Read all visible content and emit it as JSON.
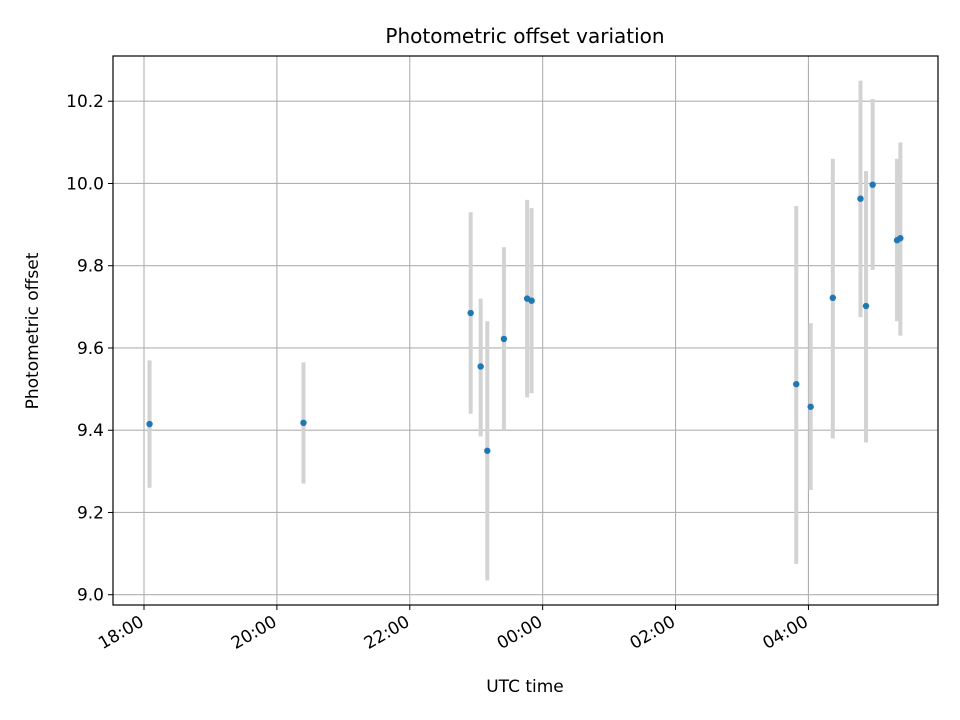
{
  "chart_data": {
    "type": "scatter",
    "title": "Photometric offset variation",
    "xlabel": "UTC time",
    "ylabel": "Photometric offset",
    "x_axis_kind": "time",
    "x_ticks": [
      "18:00",
      "20:00",
      "22:00",
      "00:00",
      "02:00",
      "04:00"
    ],
    "y_ticks": [
      "9.0",
      "9.2",
      "9.4",
      "9.6",
      "9.8",
      "10.0",
      "10.2"
    ],
    "xlim": [
      "17:32",
      "05:57"
    ],
    "ylim": [
      8.975,
      10.31
    ],
    "grid": true,
    "colors": {
      "points": "#1f77b4",
      "errorbars": "#d3d3d3",
      "grid": "#b0b0b0"
    },
    "points": [
      {
        "x": "18:05",
        "y": 9.415,
        "ylow": 9.26,
        "yhigh": 9.57
      },
      {
        "x": "20:24",
        "y": 9.418,
        "ylow": 9.27,
        "yhigh": 9.565
      },
      {
        "x": "22:55",
        "y": 9.685,
        "ylow": 9.44,
        "yhigh": 9.93
      },
      {
        "x": "23:04",
        "y": 9.555,
        "ylow": 9.385,
        "yhigh": 9.72
      },
      {
        "x": "23:10",
        "y": 9.35,
        "ylow": 9.035,
        "yhigh": 9.665
      },
      {
        "x": "23:25",
        "y": 9.622,
        "ylow": 9.4,
        "yhigh": 9.845
      },
      {
        "x": "23:46",
        "y": 9.72,
        "ylow": 9.48,
        "yhigh": 9.96
      },
      {
        "x": "23:50",
        "y": 9.715,
        "ylow": 9.49,
        "yhigh": 9.94
      },
      {
        "x": "03:49",
        "y": 9.512,
        "ylow": 9.075,
        "yhigh": 9.945
      },
      {
        "x": "04:02",
        "y": 9.457,
        "ylow": 9.255,
        "yhigh": 9.66
      },
      {
        "x": "04:22",
        "y": 9.722,
        "ylow": 9.38,
        "yhigh": 10.06
      },
      {
        "x": "04:47",
        "y": 9.963,
        "ylow": 9.675,
        "yhigh": 10.25
      },
      {
        "x": "04:52",
        "y": 9.702,
        "ylow": 9.37,
        "yhigh": 10.03
      },
      {
        "x": "04:58",
        "y": 9.997,
        "ylow": 9.79,
        "yhigh": 10.205
      },
      {
        "x": "05:20",
        "y": 9.862,
        "ylow": 9.665,
        "yhigh": 10.06
      },
      {
        "x": "05:23",
        "y": 9.867,
        "ylow": 9.63,
        "yhigh": 10.1
      }
    ]
  }
}
